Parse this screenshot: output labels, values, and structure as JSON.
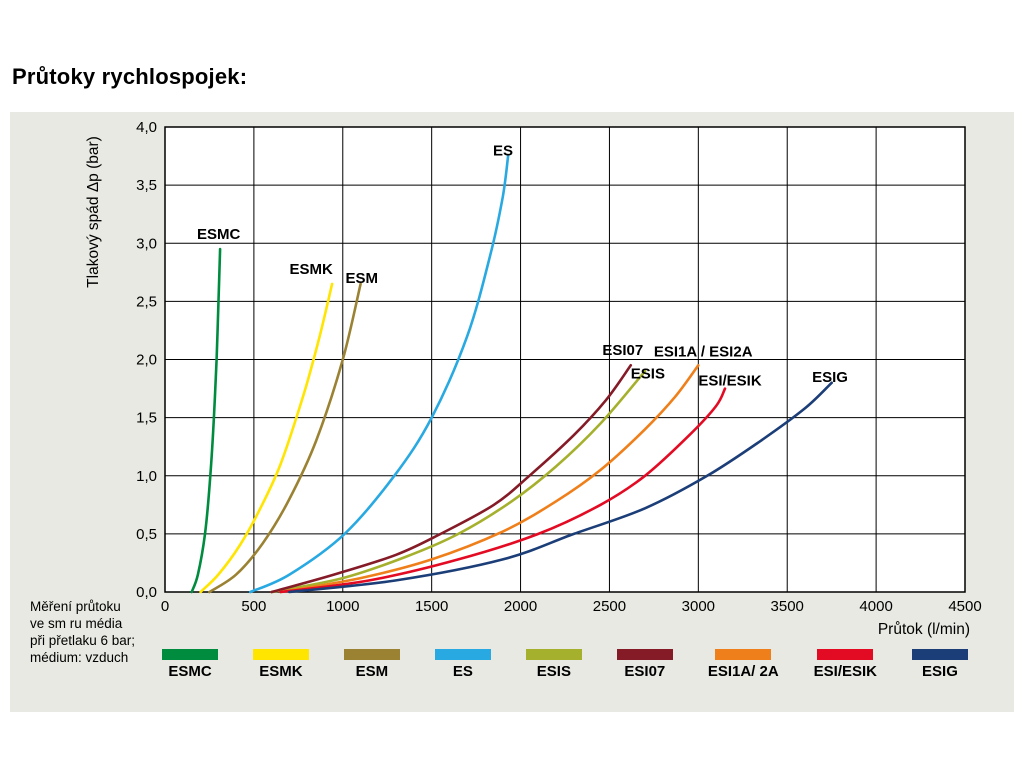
{
  "page": {
    "title": "Průtoky rychlospojek:"
  },
  "colors": {
    "panel_bg": "#e9e9e3",
    "plot_bg": "#ffffff",
    "grid": "#000000"
  },
  "chart_data": {
    "type": "line",
    "title": "Průtoky rychlospojek:",
    "xlabel": "Průtok (l/min)",
    "ylabel": "Tlakový spád Δp (bar)",
    "xlim": [
      0,
      4500
    ],
    "ylim": [
      0,
      4
    ],
    "grid": true,
    "x_tick_values": [
      0,
      500,
      1000,
      1500,
      2000,
      2500,
      3000,
      3500,
      4000,
      4500
    ],
    "x_tick_labels": [
      "0",
      "500",
      "1000",
      "1500",
      "2000",
      "2500",
      "3000",
      "3500",
      "4000",
      "4500"
    ],
    "y_tick_values": [
      0,
      0.5,
      1,
      1.5,
      2,
      2.5,
      3,
      3.5,
      4
    ],
    "y_tick_labels": [
      "0,0",
      "0,5",
      "1,0",
      "1,5",
      "2,0",
      "2,5",
      "3,0",
      "3,5",
      "4,0"
    ],
    "series": [
      {
        "name": "ESMC",
        "color": "#008c3f",
        "points": [
          [
            150,
            0
          ],
          [
            185,
            0.15
          ],
          [
            225,
            0.5
          ],
          [
            255,
            1.0
          ],
          [
            275,
            1.5
          ],
          [
            290,
            2.0
          ],
          [
            300,
            2.45
          ],
          [
            310,
            2.95
          ]
        ],
        "label": {
          "text": "ESMC",
          "x": 180,
          "y": 3.08
        }
      },
      {
        "name": "ESMK",
        "color": "#ffe500",
        "points": [
          [
            200,
            0
          ],
          [
            300,
            0.15
          ],
          [
            420,
            0.4
          ],
          [
            530,
            0.7
          ],
          [
            650,
            1.1
          ],
          [
            780,
            1.7
          ],
          [
            870,
            2.2
          ],
          [
            940,
            2.65
          ]
        ],
        "label": {
          "text": "ESMK",
          "x": 700,
          "y": 2.78
        }
      },
      {
        "name": "ESM",
        "color": "#9b8233",
        "points": [
          [
            250,
            0
          ],
          [
            400,
            0.15
          ],
          [
            550,
            0.42
          ],
          [
            700,
            0.8
          ],
          [
            850,
            1.3
          ],
          [
            1000,
            2.0
          ],
          [
            1100,
            2.65
          ]
        ],
        "label": {
          "text": "ESM",
          "x": 1015,
          "y": 2.7
        }
      },
      {
        "name": "ES",
        "color": "#29a9e1",
        "points": [
          [
            480,
            0
          ],
          [
            700,
            0.15
          ],
          [
            1010,
            0.5
          ],
          [
            1290,
            1.0
          ],
          [
            1500,
            1.5
          ],
          [
            1700,
            2.2
          ],
          [
            1830,
            2.9
          ],
          [
            1900,
            3.4
          ],
          [
            1930,
            3.75
          ]
        ],
        "label": {
          "text": "ES",
          "x": 1845,
          "y": 3.8
        }
      },
      {
        "name": "ESIS",
        "color": "#a5b02d",
        "points": [
          [
            600,
            0
          ],
          [
            1000,
            0.12
          ],
          [
            1350,
            0.3
          ],
          [
            1650,
            0.5
          ],
          [
            1950,
            0.78
          ],
          [
            2200,
            1.08
          ],
          [
            2450,
            1.45
          ],
          [
            2700,
            1.9
          ]
        ],
        "label": {
          "text": "ESIS",
          "x": 2620,
          "y": 1.88
        }
      },
      {
        "name": "ESI07",
        "color": "#841b27",
        "points": [
          [
            600,
            0
          ],
          [
            950,
            0.15
          ],
          [
            1300,
            0.32
          ],
          [
            1550,
            0.5
          ],
          [
            1850,
            0.75
          ],
          [
            2050,
            1.0
          ],
          [
            2300,
            1.35
          ],
          [
            2480,
            1.65
          ],
          [
            2620,
            1.95
          ]
        ],
        "label": {
          "text": "ESI07",
          "x": 2460,
          "y": 2.08
        }
      },
      {
        "name": "ESI1A / ESI2A",
        "color": "#ef7f1a",
        "points": [
          [
            650,
            0
          ],
          [
            1100,
            0.12
          ],
          [
            1500,
            0.28
          ],
          [
            1900,
            0.52
          ],
          [
            2200,
            0.78
          ],
          [
            2450,
            1.05
          ],
          [
            2700,
            1.4
          ],
          [
            2870,
            1.68
          ],
          [
            3000,
            1.95
          ]
        ],
        "label": {
          "text": "ESI1A / ESI2A",
          "x": 2750,
          "y": 2.07
        }
      },
      {
        "name": "ESI/ESIK",
        "color": "#e30b23",
        "points": [
          [
            650,
            0
          ],
          [
            1150,
            0.1
          ],
          [
            1650,
            0.28
          ],
          [
            2100,
            0.5
          ],
          [
            2450,
            0.75
          ],
          [
            2700,
            1.0
          ],
          [
            2950,
            1.35
          ],
          [
            3100,
            1.6
          ],
          [
            3150,
            1.75
          ]
        ],
        "label": {
          "text": "ESI/ESIK",
          "x": 3000,
          "y": 1.82
        }
      },
      {
        "name": "ESIG",
        "color": "#1c3e78",
        "points": [
          [
            700,
            0
          ],
          [
            1300,
            0.1
          ],
          [
            1900,
            0.28
          ],
          [
            2300,
            0.5
          ],
          [
            2700,
            0.72
          ],
          [
            3050,
            1.0
          ],
          [
            3350,
            1.3
          ],
          [
            3600,
            1.58
          ],
          [
            3750,
            1.8
          ]
        ],
        "label": {
          "text": "ESIG",
          "x": 3640,
          "y": 1.85
        }
      }
    ],
    "legend": [
      {
        "label": "ESMC",
        "color": "#008c3f"
      },
      {
        "label": "ESMK",
        "color": "#ffe500"
      },
      {
        "label": "ESM",
        "color": "#9b8233"
      },
      {
        "label": "ES",
        "color": "#29a9e1"
      },
      {
        "label": "ESIS",
        "color": "#a5b02d"
      },
      {
        "label": "ESI07",
        "color": "#841b27"
      },
      {
        "label": "ESI1A/ 2A",
        "color": "#ef7f1a"
      },
      {
        "label": "ESI/ESIK",
        "color": "#e30b23"
      },
      {
        "label": "ESIG",
        "color": "#1c3e78"
      }
    ],
    "note_lines": [
      "Měření průtoku",
      "ve sm ru média",
      "při přetlaku 6 bar;",
      "médium: vzduch"
    ],
    "legend_position": "bottom",
    "x_axis_title_position": "bottom-right"
  }
}
